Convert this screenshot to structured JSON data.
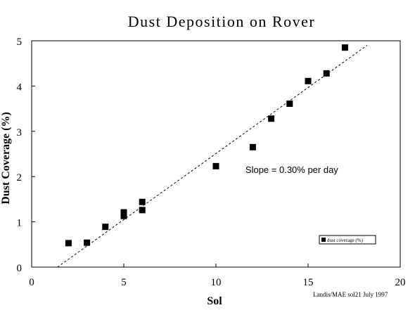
{
  "chart_data": {
    "type": "scatter",
    "title": "Dust Deposition on Rover",
    "xlabel": "Sol",
    "ylabel": "Dust Coverage (%)",
    "xlim": [
      0,
      20
    ],
    "ylim": [
      0,
      5
    ],
    "xticks": [
      0,
      5,
      10,
      15,
      20
    ],
    "yticks": [
      0,
      1,
      2,
      3,
      4,
      5
    ],
    "grid": false,
    "legend": {
      "position": "bottom-right",
      "label": "dust coverage (%)"
    },
    "series": [
      {
        "name": "dust coverage (%)",
        "marker": "square",
        "color": "#000000",
        "x": [
          2,
          3,
          4,
          5,
          5,
          6,
          6,
          10,
          12,
          13,
          14,
          15,
          16,
          17
        ],
        "y": [
          0.53,
          0.54,
          0.89,
          1.13,
          1.21,
          1.26,
          1.44,
          2.23,
          2.65,
          3.28,
          3.61,
          4.11,
          4.28,
          4.85
        ]
      }
    ],
    "trendline": {
      "style": "dashed",
      "color": "#000000",
      "x": [
        1.4,
        18.2
      ],
      "y": [
        0.0,
        4.9
      ]
    },
    "annotations": [
      {
        "text": "Slope = 0.30% per day",
        "x": 11.6,
        "y": 2.08
      }
    ],
    "credit": "Landis/MAE sol21 July 1997"
  }
}
